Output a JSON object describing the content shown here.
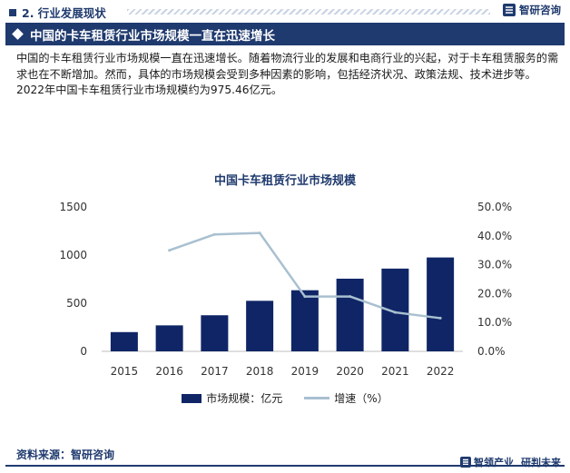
{
  "header": {
    "section": "2. 行业发展现状",
    "logo_text": "智研咨询"
  },
  "banner": {
    "title": "中国的卡车租赁行业市场规模一直在迅速增长"
  },
  "paragraph": "中国的卡车租赁行业市场规模一直在迅速增长。随着物流行业的发展和电商行业的兴起，对于卡车租赁服务的需求也在不断增加。然而，具体的市场规模会受到多种因素的影响，包括经济状况、政策法规、技术进步等。2022年中国卡车租赁行业市场规模约为975.46亿元。",
  "chart_data": {
    "type": "bar",
    "title": "中国卡车租赁行业市场规模",
    "categories": [
      "2015",
      "2016",
      "2017",
      "2018",
      "2019",
      "2020",
      "2021",
      "2022"
    ],
    "series": [
      {
        "name": "市场规模：亿元",
        "type": "bar",
        "axis": "left",
        "values": [
          200,
          270,
          375,
          525,
          635,
          755,
          860,
          975.46
        ]
      },
      {
        "name": "增速（%）",
        "type": "line",
        "axis": "right",
        "values": [
          null,
          35,
          40.5,
          41,
          19,
          19,
          13.5,
          11.5
        ]
      }
    ],
    "y_left": {
      "min": 0,
      "max": 1500,
      "ticks": [
        "0",
        "500",
        "1000",
        "1500"
      ],
      "tick_values": [
        0,
        500,
        1000,
        1500
      ]
    },
    "y_right": {
      "min": 0,
      "max": 50,
      "ticks": [
        "0.0%",
        "10.0%",
        "20.0%",
        "30.0%",
        "40.0%",
        "50.0%"
      ],
      "tick_values": [
        0,
        10,
        20,
        30,
        40,
        50
      ]
    },
    "legend_position": "bottom",
    "grid": false,
    "colors": {
      "bar": "#0f2566",
      "line": "#a9c0d0"
    }
  },
  "footer": {
    "source": "资料来源：智研咨询",
    "logo_left": "智领产业",
    "logo_right": "研判未来"
  }
}
